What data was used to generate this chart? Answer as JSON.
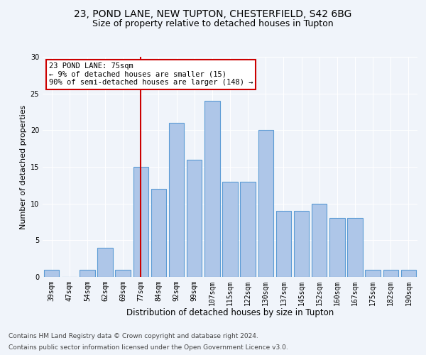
{
  "title1": "23, POND LANE, NEW TUPTON, CHESTERFIELD, S42 6BG",
  "title2": "Size of property relative to detached houses in Tupton",
  "xlabel": "Distribution of detached houses by size in Tupton",
  "ylabel": "Number of detached properties",
  "categories": [
    "39sqm",
    "47sqm",
    "54sqm",
    "62sqm",
    "69sqm",
    "77sqm",
    "84sqm",
    "92sqm",
    "99sqm",
    "107sqm",
    "115sqm",
    "122sqm",
    "130sqm",
    "137sqm",
    "145sqm",
    "152sqm",
    "160sqm",
    "167sqm",
    "175sqm",
    "182sqm",
    "190sqm"
  ],
  "values": [
    1,
    0,
    1,
    4,
    1,
    15,
    12,
    21,
    16,
    24,
    13,
    13,
    20,
    9,
    9,
    10,
    8,
    8,
    1,
    1,
    1
  ],
  "bar_color": "#aec6e8",
  "bar_edge_color": "#5b9bd5",
  "red_line_index": 5,
  "red_line_color": "#cc0000",
  "annotation_text": "23 POND LANE: 75sqm\n← 9% of detached houses are smaller (15)\n90% of semi-detached houses are larger (148) →",
  "annotation_box_color": "#ffffff",
  "annotation_box_edge": "#cc0000",
  "ylim": [
    0,
    30
  ],
  "yticks": [
    0,
    5,
    10,
    15,
    20,
    25,
    30
  ],
  "footer1": "Contains HM Land Registry data © Crown copyright and database right 2024.",
  "footer2": "Contains public sector information licensed under the Open Government Licence v3.0.",
  "background_color": "#f0f4fa",
  "grid_color": "#ffffff",
  "title1_fontsize": 10,
  "title2_fontsize": 9,
  "xlabel_fontsize": 8.5,
  "ylabel_fontsize": 8,
  "tick_fontsize": 7,
  "annotation_fontsize": 7.5,
  "footer_fontsize": 6.5
}
